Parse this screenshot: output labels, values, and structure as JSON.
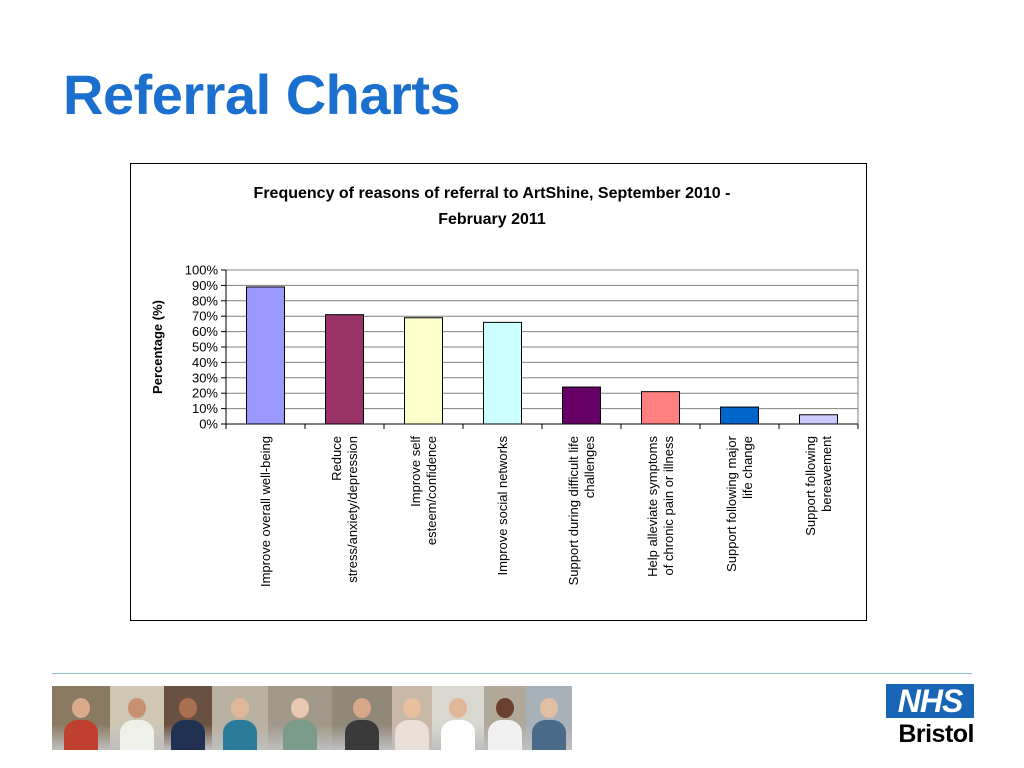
{
  "slide": {
    "title": "Referral Charts"
  },
  "chart_data": {
    "type": "bar",
    "title_lines": [
      "Frequency of reasons of referral to ArtShine, September 2010 -",
      "February 2011"
    ],
    "ylabel": "Percentage (%)",
    "xlabel": "",
    "ylim": [
      0,
      100
    ],
    "yticks": [
      "0%",
      "10%",
      "20%",
      "30%",
      "40%",
      "50%",
      "60%",
      "70%",
      "80%",
      "90%",
      "100%"
    ],
    "grid": true,
    "legend": "none",
    "categories": [
      {
        "lines": [
          "Improve overall well-being"
        ]
      },
      {
        "lines": [
          "Reduce",
          "stress/anxiety/depression"
        ]
      },
      {
        "lines": [
          "Improve self",
          "esteem/confidence"
        ]
      },
      {
        "lines": [
          "Improve social networks"
        ]
      },
      {
        "lines": [
          "Support during difficult life",
          "challenges"
        ]
      },
      {
        "lines": [
          "Help alleviate symptoms",
          "of chronic pain or illness"
        ]
      },
      {
        "lines": [
          "Support following major",
          "life change"
        ]
      },
      {
        "lines": [
          "Support following",
          "bereavement"
        ]
      }
    ],
    "values": [
      89,
      71,
      69,
      66,
      24,
      21,
      11,
      6
    ],
    "colors": [
      "#9999ff",
      "#993366",
      "#ffffcc",
      "#ccffff",
      "#660066",
      "#ff8080",
      "#0066cc",
      "#ccccff"
    ]
  },
  "footer": {
    "logo_text": "NHS",
    "logo_place": "Bristol",
    "photos": [
      {
        "name": "photo-child-ball-icon",
        "bg": "#8a7a62",
        "skin": "#d9a98a",
        "cloth": "#c04030"
      },
      {
        "name": "photo-toddler-icon",
        "bg": "#cfc6b4",
        "skin": "#c89070",
        "cloth": "#f0f0ea"
      },
      {
        "name": "photo-woman-icon",
        "bg": "#6a5040",
        "skin": "#a87050",
        "cloth": "#203050"
      },
      {
        "name": "photo-clinic-icon",
        "bg": "#b8b0a0",
        "skin": "#e0b898",
        "cloth": "#2a7a9a"
      },
      {
        "name": "photo-elderly-woman-icon",
        "bg": "#a09888",
        "skin": "#e8c8b0",
        "cloth": "#7a9a8a"
      },
      {
        "name": "photo-eye-exam-icon",
        "bg": "#908878",
        "skin": "#d8a888",
        "cloth": "#3a3a3a"
      },
      {
        "name": "photo-girl-smile-icon",
        "bg": "#c8b8a8",
        "skin": "#e8c0a0",
        "cloth": "#e8e0d8"
      },
      {
        "name": "photo-doctor-icon",
        "bg": "#d8d8d0",
        "skin": "#e0b898",
        "cloth": "#ffffff"
      },
      {
        "name": "photo-nurse-icon",
        "bg": "#b0a898",
        "skin": "#6a4030",
        "cloth": "#f0f0f0"
      },
      {
        "name": "photo-reception-icon",
        "bg": "#a8b0b8",
        "skin": "#e0c0a0",
        "cloth": "#4a6a8a"
      }
    ]
  }
}
